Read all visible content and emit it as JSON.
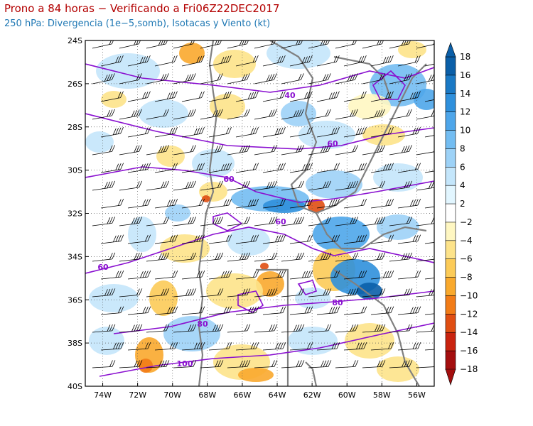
{
  "header": {
    "title": "Prono a 84 horas − Verificando a Fri06Z22DEC2017",
    "subtitle": "250 hPa: Divergencia (1e−5,somb), Isotacas y Viento (kt)"
  },
  "map": {
    "lon_range": [
      -75,
      -55
    ],
    "lat_range": [
      -40,
      -24
    ],
    "lon_ticks": [
      "74W",
      "72W",
      "70W",
      "68W",
      "66W",
      "64W",
      "62W",
      "60W",
      "58W",
      "56W"
    ],
    "lat_ticks": [
      "24S",
      "26S",
      "28S",
      "30S",
      "32S",
      "34S",
      "36S",
      "38S",
      "40S"
    ]
  },
  "isotachs": {
    "color": "#8a10d0",
    "labels": [
      "40",
      "60",
      "60",
      "60",
      "60",
      "80",
      "80",
      "100"
    ]
  },
  "colorbar": {
    "labels": [
      "18",
      "16",
      "14",
      "12",
      "10",
      "8",
      "6",
      "4",
      "2",
      "−2",
      "−4",
      "−6",
      "−8",
      "−10",
      "−12",
      "−14",
      "−16",
      "−18"
    ],
    "colors": [
      "#0b5fa8",
      "#1a79c5",
      "#2f90dc",
      "#4ea6ea",
      "#73bdf2",
      "#9dd2f7",
      "#c4e6fb",
      "#e2f6ff",
      "#ffffff",
      "#fff7c2",
      "#fde38a",
      "#fccb58",
      "#f9a92d",
      "#f27c17",
      "#e04e12",
      "#c9230f",
      "#a40e0e"
    ]
  }
}
